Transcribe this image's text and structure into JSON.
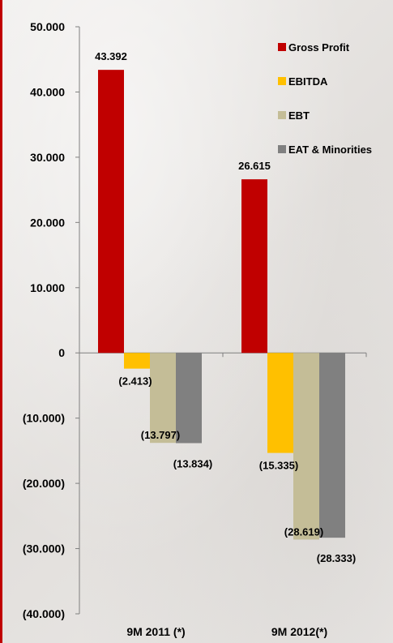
{
  "chart_data": {
    "type": "bar",
    "categories": [
      "9M 2011 (*)",
      "9M 2012(*)"
    ],
    "series": [
      {
        "name": "Gross Profit",
        "color": "#c00000",
        "values": [
          43392,
          26615
        ],
        "labels": [
          "43.392",
          "26.615"
        ]
      },
      {
        "name": "EBITDA",
        "color": "#ffc000",
        "values": [
          -2413,
          -15335
        ],
        "labels": [
          "(2.413)",
          "(15.335)"
        ]
      },
      {
        "name": "EBT",
        "color": "#c4bd97",
        "values": [
          -13797,
          -28619
        ],
        "labels": [
          "(13.797)",
          "(28.619)"
        ]
      },
      {
        "name": "EAT & Minorities",
        "color": "#808080",
        "values": [
          -13834,
          -28333
        ],
        "labels": [
          "(13.834)",
          "(28.333)"
        ]
      }
    ],
    "ylim": [
      -40000,
      50000
    ],
    "yticks": [
      50000,
      40000,
      30000,
      20000,
      10000,
      0,
      -10000,
      -20000,
      -30000,
      -40000
    ],
    "ytick_labels": [
      "50.000",
      "40.000",
      "30.000",
      "20.000",
      "10.000",
      "0",
      "(10.000)",
      "(20.000)",
      "(30.000)",
      "(40.000)"
    ],
    "title": "",
    "xlabel": "",
    "ylabel": "",
    "legend": "top-right",
    "grid": false
  }
}
